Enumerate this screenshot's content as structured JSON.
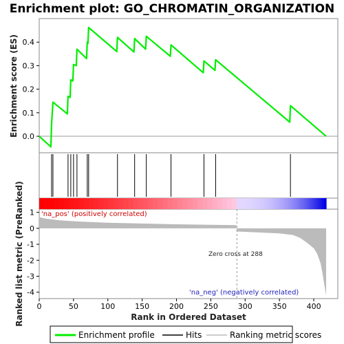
{
  "chart_data": {
    "type": "line",
    "title": "Enrichment plot: GO_CHROMATIN_ORGANIZATION",
    "xlabel": "Rank in Ordered Dataset",
    "ylabel_top": "Enrichment score (ES)",
    "ylabel_bottom": "Ranked list metric (PreRanked)",
    "xlim": [
      0,
      435
    ],
    "ylim_es": [
      -0.07,
      0.5
    ],
    "ylim_metric": [
      -4.4,
      1.2
    ],
    "x_ticks": [
      "0",
      "50",
      "100",
      "150",
      "200",
      "250",
      "300",
      "350",
      "400"
    ],
    "x_tick_values": [
      0,
      50,
      100,
      150,
      200,
      250,
      300,
      350,
      400
    ],
    "es_ticks": [
      "0.0",
      "0.1",
      "0.2",
      "0.3",
      "0.4"
    ],
    "es_tick_values": [
      0.0,
      0.1,
      0.2,
      0.3,
      0.4
    ],
    "metric_ticks": [
      "1",
      "0",
      "-1",
      "-2",
      "-3",
      "-4"
    ],
    "metric_tick_values": [
      1,
      0,
      -1,
      -2,
      -3,
      -4
    ],
    "hits": [
      18,
      20,
      42,
      46,
      50,
      55,
      70,
      72,
      114,
      139,
      156,
      192,
      240,
      257,
      366
    ],
    "es_profile": [
      [
        0,
        0.0
      ],
      [
        17,
        -0.045
      ],
      [
        18,
        0.05
      ],
      [
        20,
        0.145
      ],
      [
        41,
        0.095
      ],
      [
        42,
        0.17
      ],
      [
        45,
        0.165
      ],
      [
        46,
        0.24
      ],
      [
        49,
        0.235
      ],
      [
        50,
        0.305
      ],
      [
        54,
        0.3
      ],
      [
        55,
        0.37
      ],
      [
        69,
        0.33
      ],
      [
        70,
        0.4
      ],
      [
        71,
        0.395
      ],
      [
        72,
        0.462
      ],
      [
        113,
        0.36
      ],
      [
        114,
        0.42
      ],
      [
        138,
        0.358
      ],
      [
        139,
        0.415
      ],
      [
        155,
        0.37
      ],
      [
        156,
        0.425
      ],
      [
        191,
        0.34
      ],
      [
        192,
        0.388
      ],
      [
        239,
        0.27
      ],
      [
        240,
        0.32
      ],
      [
        256,
        0.28
      ],
      [
        257,
        0.325
      ],
      [
        365,
        0.06
      ],
      [
        366,
        0.13
      ],
      [
        418,
        0.0
      ]
    ],
    "metric_profile": [
      [
        0,
        0.7
      ],
      [
        10,
        0.6
      ],
      [
        30,
        0.5
      ],
      [
        60,
        0.42
      ],
      [
        100,
        0.35
      ],
      [
        150,
        0.3
      ],
      [
        200,
        0.25
      ],
      [
        250,
        0.22
      ],
      [
        287,
        0.2
      ],
      [
        288,
        -0.2
      ],
      [
        320,
        -0.26
      ],
      [
        350,
        -0.32
      ],
      [
        370,
        -0.42
      ],
      [
        380,
        -0.6
      ],
      [
        390,
        -0.9
      ],
      [
        400,
        -1.25
      ],
      [
        405,
        -1.6
      ],
      [
        410,
        -2.2
      ],
      [
        413,
        -2.9
      ],
      [
        416,
        -3.7
      ],
      [
        418,
        -4.2
      ]
    ],
    "zero_cross_rank": 288,
    "annotations": {
      "pos": "'na_pos' (positively correlated)",
      "neg": "'na_neg' (negatively correlated)",
      "zero": "Zero cross at 288"
    },
    "colors": {
      "es_line": "#00ee00",
      "hit_line": "#000000",
      "metric_fill": "#bbbbbb",
      "pos_band": "#ff0000",
      "neg_band": "#0000ff"
    },
    "legend": {
      "placement": "bottom",
      "items": [
        "Enrichment profile",
        "Hits",
        "Ranking metric scores"
      ]
    }
  }
}
